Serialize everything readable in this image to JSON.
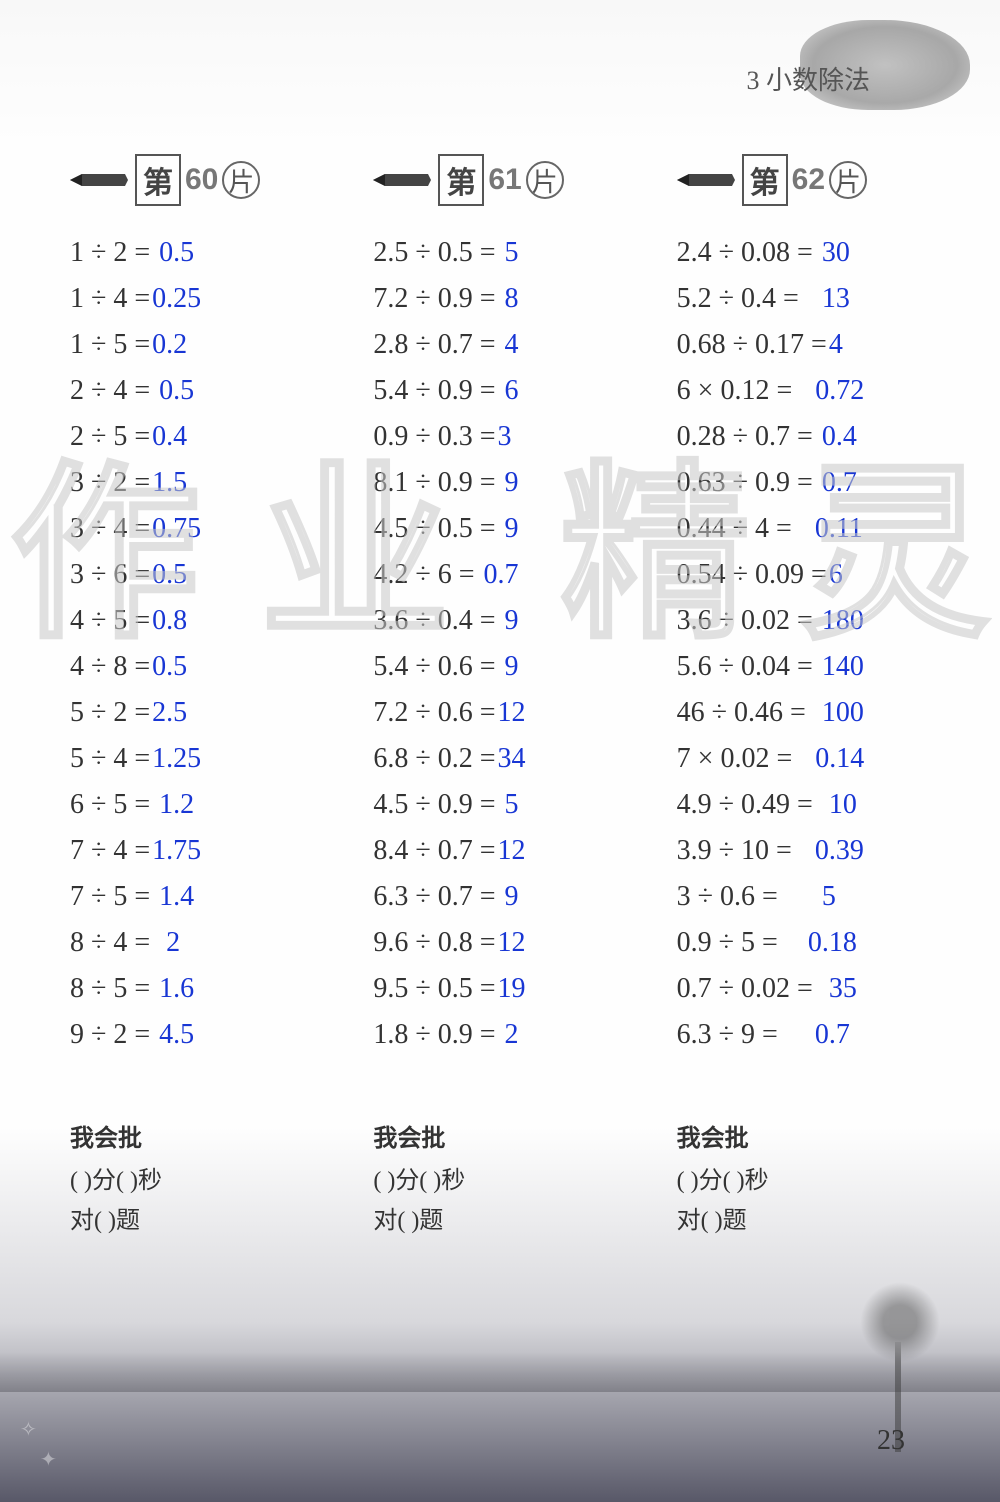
{
  "chapter": "3  小数除法",
  "watermark": [
    "作",
    "业",
    "精",
    "灵"
  ],
  "page_number": "23",
  "colors": {
    "problem_text": "#333333",
    "answer_text": "#1836d4",
    "header_text": "#555555",
    "background_top": "#fefefe",
    "background_bottom": "#585868"
  },
  "typography": {
    "problem_fontsize": 28,
    "answer_fontsize": 28,
    "header_fontsize": 30,
    "line_height": 46
  },
  "columns": [
    {
      "header_prefix": "第",
      "header_num": "60",
      "header_suffix": "片",
      "problems": [
        {
          "q": "1 ÷ 2 = ",
          "a": "0.5"
        },
        {
          "q": "1 ÷ 4 =",
          "a": "0.25"
        },
        {
          "q": "1 ÷ 5 =",
          "a": "0.2"
        },
        {
          "q": "2 ÷ 4 = ",
          "a": "0.5"
        },
        {
          "q": "2 ÷ 5 =",
          "a": "0.4"
        },
        {
          "q": "3 ÷ 2 =",
          "a": "1.5"
        },
        {
          "q": "3 ÷ 4 =",
          "a": "0.75"
        },
        {
          "q": "3 ÷ 6 =",
          "a": "0.5"
        },
        {
          "q": "4 ÷ 5 =",
          "a": "0.8"
        },
        {
          "q": "4 ÷ 8 =",
          "a": "0.5"
        },
        {
          "q": "5 ÷ 2 =",
          "a": "2.5"
        },
        {
          "q": "5 ÷ 4 =",
          "a": "1.25"
        },
        {
          "q": "6 ÷ 5 = ",
          "a": "1.2"
        },
        {
          "q": "7 ÷ 4 =",
          "a": "1.75"
        },
        {
          "q": "7 ÷ 5 = ",
          "a": "1.4"
        },
        {
          "q": "8 ÷ 4 =  ",
          "a": "2"
        },
        {
          "q": "8 ÷ 5 = ",
          "a": "1.6"
        },
        {
          "q": "9 ÷ 2 = ",
          "a": "4.5"
        }
      ]
    },
    {
      "header_prefix": "第",
      "header_num": "61",
      "header_suffix": "片",
      "problems": [
        {
          "q": "2.5 ÷ 0.5 = ",
          "a": "5"
        },
        {
          "q": "7.2 ÷ 0.9 = ",
          "a": "8"
        },
        {
          "q": "2.8 ÷ 0.7 = ",
          "a": "4"
        },
        {
          "q": "5.4 ÷ 0.9 = ",
          "a": "6"
        },
        {
          "q": "0.9 ÷ 0.3 =",
          "a": "3"
        },
        {
          "q": "8.1 ÷ 0.9 = ",
          "a": "9"
        },
        {
          "q": "4.5 ÷ 0.5 = ",
          "a": "9"
        },
        {
          "q": "4.2 ÷ 6 = ",
          "a": "0.7"
        },
        {
          "q": "3.6 ÷ 0.4 = ",
          "a": "9"
        },
        {
          "q": "5.4 ÷ 0.6 = ",
          "a": "9"
        },
        {
          "q": "7.2 ÷ 0.6 =",
          "a": "12"
        },
        {
          "q": "6.8 ÷ 0.2 =",
          "a": "34"
        },
        {
          "q": "4.5 ÷ 0.9 = ",
          "a": "5"
        },
        {
          "q": "8.4 ÷ 0.7 =",
          "a": "12"
        },
        {
          "q": "6.3 ÷ 0.7 = ",
          "a": "9"
        },
        {
          "q": "9.6 ÷ 0.8 =",
          "a": "12"
        },
        {
          "q": "9.5 ÷ 0.5 =",
          "a": "19"
        },
        {
          "q": "1.8 ÷ 0.9 = ",
          "a": "2"
        }
      ]
    },
    {
      "header_prefix": "第",
      "header_num": "62",
      "header_suffix": "片",
      "problems": [
        {
          "q": "2.4 ÷ 0.08 = ",
          "a": "30"
        },
        {
          "q": "5.2 ÷ 0.4 =   ",
          "a": "13"
        },
        {
          "q": "0.68 ÷ 0.17 =",
          "a": "4"
        },
        {
          "q": "6 × 0.12 =   ",
          "a": "0.72"
        },
        {
          "q": "0.28 ÷ 0.7 = ",
          "a": "0.4"
        },
        {
          "q": "0.63 ÷ 0.9 = ",
          "a": "0.7"
        },
        {
          "q": "0.44 ÷ 4 =   ",
          "a": "0.11"
        },
        {
          "q": "0.54 ÷ 0.09 =",
          "a": "6"
        },
        {
          "q": "3.6 ÷ 0.02 = ",
          "a": "180"
        },
        {
          "q": "5.6 ÷ 0.04 = ",
          "a": "140"
        },
        {
          "q": "46 ÷ 0.46 =  ",
          "a": "100"
        },
        {
          "q": "7 × 0.02 =   ",
          "a": "0.14"
        },
        {
          "q": "4.9 ÷ 0.49 =  ",
          "a": "10"
        },
        {
          "q": "3.9 ÷ 10 =   ",
          "a": "0.39"
        },
        {
          "q": "3 ÷ 0.6 =      ",
          "a": "5"
        },
        {
          "q": "0.9 ÷ 5 =    ",
          "a": "0.18"
        },
        {
          "q": "0.7 ÷ 0.02 =  ",
          "a": "35"
        },
        {
          "q": "6.3 ÷ 9 =     ",
          "a": "0.7"
        }
      ]
    }
  ],
  "footer": {
    "title": "我会批",
    "line1_parts": [
      "(    )",
      "分",
      "(    )",
      "秒"
    ],
    "line2_parts": [
      "对",
      "(     )",
      "题"
    ]
  }
}
